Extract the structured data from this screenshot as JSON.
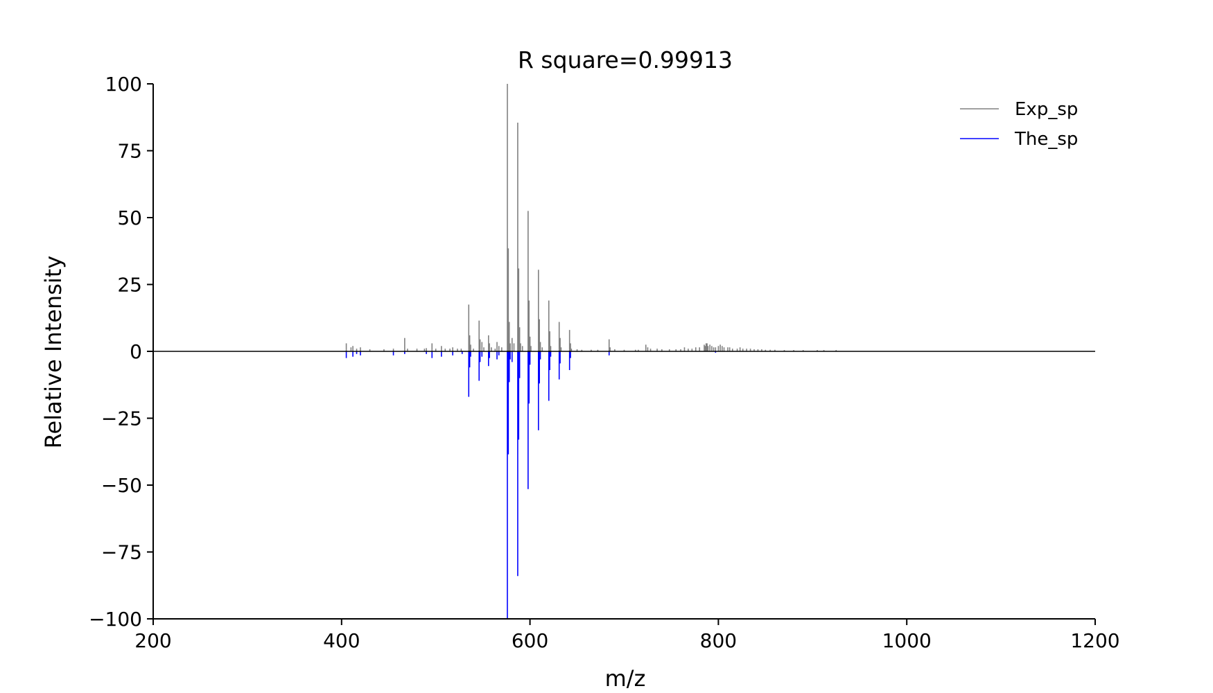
{
  "chart_data": {
    "type": "line",
    "title": "R square=0.99913",
    "xlabel": "m/z",
    "ylabel": "Relative Intensity",
    "xlim": [
      200,
      1200
    ],
    "ylim": [
      -100,
      100
    ],
    "xticks": [
      "200",
      "400",
      "600",
      "800",
      "1000",
      "1200"
    ],
    "yticks": [
      "100",
      "75",
      "50",
      "25",
      "0",
      "−25",
      "−50",
      "−75",
      "−100"
    ],
    "grid": false,
    "legend_position": "top-right",
    "colors": {
      "exp": "#808080",
      "theo": "#0000ff",
      "residual": "#ff0000",
      "axis": "#000000"
    },
    "series": [
      {
        "name": "Exp_sp",
        "peaks": [
          [
            405,
            3
          ],
          [
            410,
            1.5
          ],
          [
            412,
            2
          ],
          [
            416,
            1
          ],
          [
            420,
            1.5
          ],
          [
            430,
            0.8
          ],
          [
            445,
            0.8
          ],
          [
            455,
            1
          ],
          [
            467,
            5
          ],
          [
            470,
            1
          ],
          [
            480,
            1
          ],
          [
            488,
            1
          ],
          [
            490,
            1.2
          ],
          [
            496,
            3
          ],
          [
            500,
            1
          ],
          [
            506,
            2
          ],
          [
            510,
            1
          ],
          [
            515,
            1
          ],
          [
            518,
            1.5
          ],
          [
            523,
            1
          ],
          [
            527,
            1
          ],
          [
            535,
            17.5
          ],
          [
            536,
            6
          ],
          [
            537,
            2.5
          ],
          [
            540,
            1
          ],
          [
            546,
            11.5
          ],
          [
            547,
            4.5
          ],
          [
            549,
            3.5
          ],
          [
            551,
            1.5
          ],
          [
            556,
            6
          ],
          [
            557,
            3
          ],
          [
            559,
            1.5
          ],
          [
            563,
            1
          ],
          [
            565,
            3.5
          ],
          [
            567,
            2
          ],
          [
            570,
            1.5
          ],
          [
            576,
            100
          ],
          [
            577,
            38.5
          ],
          [
            578,
            11
          ],
          [
            579,
            3
          ],
          [
            581,
            5
          ],
          [
            583,
            3
          ],
          [
            587,
            85.5
          ],
          [
            588,
            31
          ],
          [
            589,
            9
          ],
          [
            590,
            3
          ],
          [
            592,
            2
          ],
          [
            598,
            52.5
          ],
          [
            599,
            19
          ],
          [
            600,
            5.5
          ],
          [
            601,
            2
          ],
          [
            609,
            30.5
          ],
          [
            610,
            12
          ],
          [
            611,
            3.5
          ],
          [
            613,
            1.5
          ],
          [
            620,
            19
          ],
          [
            621,
            7.5
          ],
          [
            622,
            2
          ],
          [
            631,
            11
          ],
          [
            632,
            5
          ],
          [
            633,
            1.5
          ],
          [
            642,
            8
          ],
          [
            643,
            3
          ],
          [
            644,
            1
          ],
          [
            650,
            0.8
          ],
          [
            655,
            0.6
          ],
          [
            665,
            0.6
          ],
          [
            672,
            0.6
          ],
          [
            684,
            4.5
          ],
          [
            685,
            1.5
          ],
          [
            690,
            0.8
          ],
          [
            700,
            0.6
          ],
          [
            712,
            0.6
          ],
          [
            715,
            0.6
          ],
          [
            723,
            2.5
          ],
          [
            725,
            1.5
          ],
          [
            728,
            1
          ],
          [
            735,
            1
          ],
          [
            740,
            0.8
          ],
          [
            748,
            0.8
          ],
          [
            755,
            0.8
          ],
          [
            760,
            0.8
          ],
          [
            764,
            1.5
          ],
          [
            768,
            1
          ],
          [
            772,
            1
          ],
          [
            776,
            1.5
          ],
          [
            780,
            1.5
          ],
          [
            785,
            2.5
          ],
          [
            786,
            2
          ],
          [
            787,
            3
          ],
          [
            788,
            3
          ],
          [
            789,
            2
          ],
          [
            791,
            2.5
          ],
          [
            793,
            2
          ],
          [
            795,
            1.5
          ],
          [
            797,
            1.5
          ],
          [
            800,
            2
          ],
          [
            802,
            2.5
          ],
          [
            804,
            2
          ],
          [
            806,
            1.5
          ],
          [
            810,
            1.5
          ],
          [
            812,
            1.5
          ],
          [
            815,
            1
          ],
          [
            820,
            1
          ],
          [
            823,
            1.5
          ],
          [
            826,
            1
          ],
          [
            830,
            1
          ],
          [
            834,
            1
          ],
          [
            838,
            0.8
          ],
          [
            842,
            0.8
          ],
          [
            846,
            0.8
          ],
          [
            850,
            0.6
          ],
          [
            855,
            0.6
          ],
          [
            860,
            0.6
          ],
          [
            870,
            0.5
          ],
          [
            880,
            0.5
          ],
          [
            890,
            0.5
          ],
          [
            905,
            0.5
          ],
          [
            912,
            0.5
          ],
          [
            925,
            0.5
          ]
        ]
      },
      {
        "name": "The_sp",
        "peaks": [
          [
            405,
            -2.5
          ],
          [
            412,
            -2
          ],
          [
            416,
            -1
          ],
          [
            420,
            -1.5
          ],
          [
            455,
            -1.5
          ],
          [
            467,
            -1
          ],
          [
            490,
            -1
          ],
          [
            496,
            -2.5
          ],
          [
            506,
            -2
          ],
          [
            518,
            -1.5
          ],
          [
            528,
            -1
          ],
          [
            535,
            -17
          ],
          [
            536,
            -6
          ],
          [
            537,
            -2
          ],
          [
            546,
            -11
          ],
          [
            547,
            -4
          ],
          [
            549,
            -2
          ],
          [
            556,
            -5.5
          ],
          [
            557,
            -2.5
          ],
          [
            565,
            -3
          ],
          [
            567,
            -1.5
          ],
          [
            576,
            -100
          ],
          [
            577,
            -38.5
          ],
          [
            578,
            -11.5
          ],
          [
            579,
            -3
          ],
          [
            581,
            -4
          ],
          [
            587,
            -84
          ],
          [
            588,
            -33
          ],
          [
            589,
            -10
          ],
          [
            598,
            -51.5
          ],
          [
            599,
            -19.5
          ],
          [
            600,
            -5
          ],
          [
            609,
            -29.5
          ],
          [
            610,
            -12
          ],
          [
            611,
            -3
          ],
          [
            620,
            -18.5
          ],
          [
            621,
            -7
          ],
          [
            622,
            -2
          ],
          [
            631,
            -10.5
          ],
          [
            632,
            -4.5
          ],
          [
            642,
            -7
          ],
          [
            643,
            -2.5
          ],
          [
            684,
            -1.5
          ],
          [
            797,
            -0.5
          ]
        ]
      }
    ]
  }
}
